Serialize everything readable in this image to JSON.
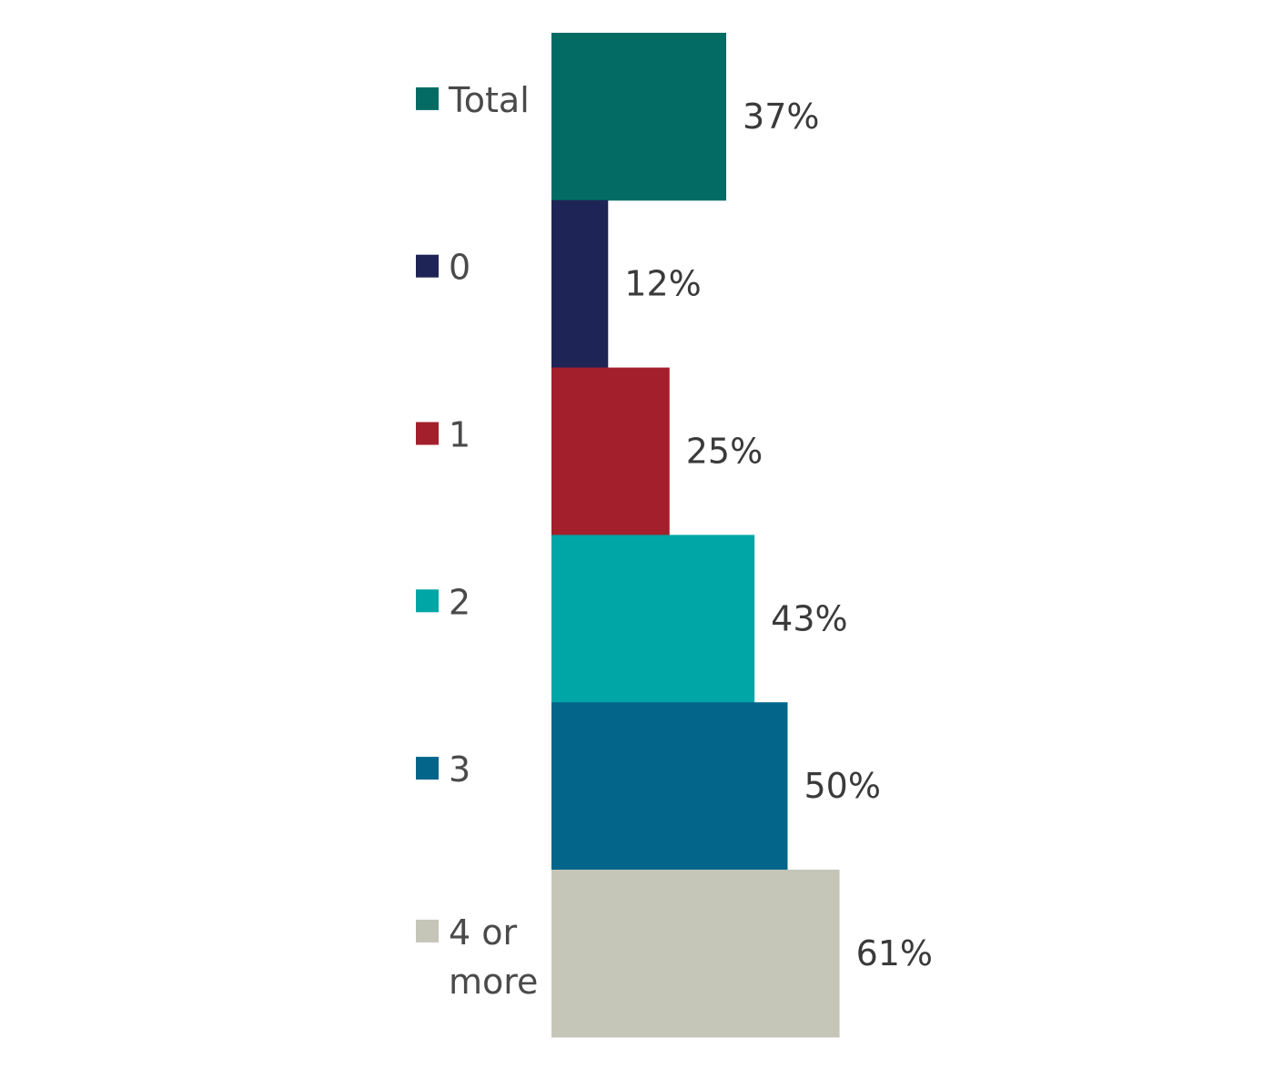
{
  "chart_data": {
    "type": "bar",
    "orientation": "horizontal",
    "value_format": "percent",
    "categories": [
      "Total",
      "0",
      "1",
      "2",
      "3",
      "4 or more"
    ],
    "values": [
      37,
      12,
      25,
      43,
      50,
      61
    ],
    "data_labels": [
      "37%",
      "12%",
      "25%",
      "43%",
      "50%",
      "61%"
    ],
    "colors": [
      "#036b64",
      "#1f2456",
      "#a31f2c",
      "#00a6a6",
      "#04658b",
      "#c5c6b8"
    ],
    "legend": {
      "placement": "left",
      "entries": [
        "Total",
        "0",
        "1",
        "2",
        "3",
        "4 or more"
      ]
    },
    "title": "",
    "xlabel": "",
    "ylabel": "",
    "xlim": [
      0,
      100
    ],
    "grid": false
  }
}
